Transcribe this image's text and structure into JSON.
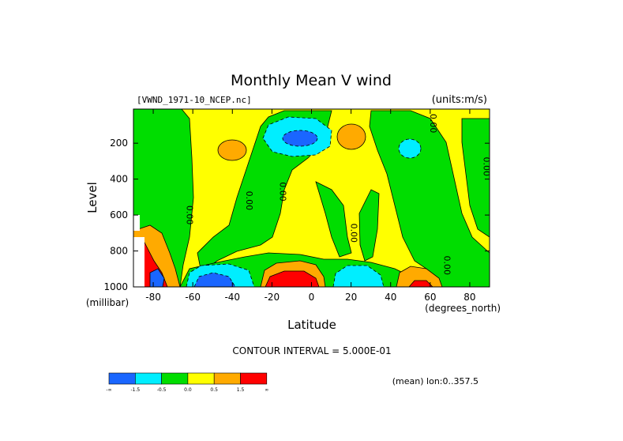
{
  "chart_data": {
    "type": "heatmap",
    "title": "Monthly Mean V wind",
    "dataset_label": "[VWND_1971-10_NCEP.nc]",
    "units_label": "(units:m/s)",
    "xlabel": "Latitude",
    "x_unit": "(degrees_north)",
    "ylabel": "Level",
    "y_unit": "(millibar)",
    "xlim": [
      -90,
      90
    ],
    "ylim": [
      1000,
      10
    ],
    "x_ticks": [
      -80,
      -60,
      -40,
      -20,
      0,
      20,
      40,
      60,
      80
    ],
    "y_ticks": [
      200,
      400,
      600,
      800,
      1000
    ],
    "contour_interval_text": "CONTOUR INTERVAL = 5.000E-01",
    "mean_note": "(mean) lon:0..357.5",
    "contour_labels": [
      {
        "text": "0.00",
        "lat": -63,
        "lev": 600
      },
      {
        "text": "0.00",
        "lat": -33,
        "lev": 520
      },
      {
        "text": "0.00",
        "lat": -16,
        "lev": 470
      },
      {
        "text": "0.00",
        "lat": 20,
        "lev": 700
      },
      {
        "text": "0.00",
        "lat": 60,
        "lev": 90
      },
      {
        "text": "0.00",
        "lat": 67,
        "lev": 880
      },
      {
        "text": "0.00",
        "lat": 87,
        "lev": 330
      }
    ],
    "legend": {
      "colors": [
        "#1a66ff",
        "#00eeff",
        "#00dd00",
        "#ffff00",
        "#ffaa00",
        "#ff0000"
      ],
      "labels": [
        "-∞",
        "-1.5",
        "-0.5",
        "0.0",
        "0.5",
        "1.5",
        "∞"
      ]
    },
    "color_roles": {
      "strong_negative": "#1a66ff",
      "negative": "#00eeff",
      "near_zero": "#00dd00",
      "positive": "#ffff00",
      "moderate_positive": "#ffaa00",
      "strong_positive": "#ff0000"
    }
  }
}
